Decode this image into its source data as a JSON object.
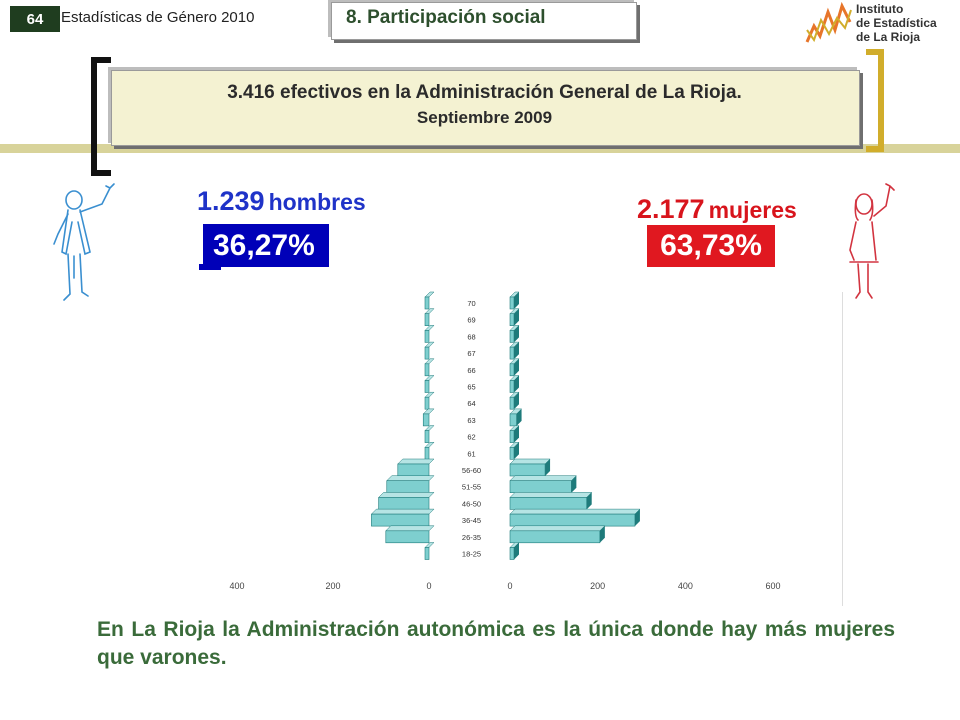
{
  "header": {
    "page_number": "64",
    "publication": "Estadísticas de Género 2010",
    "section_title": "8. Participación social",
    "logo_text": [
      "Instituto",
      "de Estadística",
      "de La Rioja"
    ]
  },
  "banner": {
    "line1": "3.416 efectivos en la Administración General de La Rioja.",
    "line2": "Septiembre 2009"
  },
  "men": {
    "count": "1.239",
    "label": "hombres",
    "percent": "36,27%"
  },
  "women": {
    "count": "2.177",
    "label": "mujeres",
    "percent": "63,73%"
  },
  "conclusion": "En La Rioja la Administración autonómica es la única donde hay más mujeres que varones.",
  "colors": {
    "bar_face": "#7ecfcf",
    "bar_shadow": "#1e7b7b",
    "men_blue": "#0000b8",
    "women_red": "#e01820",
    "text_green": "#3a6b3a"
  },
  "chart_data": {
    "type": "bar",
    "orientation": "horizontal",
    "subtype": "population-pyramid",
    "categories": [
      "18-25",
      "26-35",
      "36-45",
      "46-50",
      "51-55",
      "56-60",
      "61",
      "62",
      "63",
      "64",
      "65",
      "66",
      "67",
      "68",
      "69",
      "70"
    ],
    "series": [
      {
        "side": "left",
        "values": [
          3,
          90,
          120,
          105,
          88,
          65,
          7,
          8,
          12,
          8,
          5,
          3,
          2,
          2,
          2,
          2
        ]
      },
      {
        "side": "right",
        "values": [
          2,
          205,
          285,
          175,
          140,
          80,
          5,
          7,
          15,
          5,
          5,
          3,
          2,
          2,
          2,
          2
        ]
      }
    ],
    "x_ticks_left": [
      "400",
      "200",
      "0"
    ],
    "x_ticks_right": [
      "0",
      "200",
      "400",
      "600"
    ],
    "xlim_left": [
      0,
      400
    ],
    "xlim_right": [
      0,
      700
    ],
    "grid": false,
    "legend": "none"
  }
}
